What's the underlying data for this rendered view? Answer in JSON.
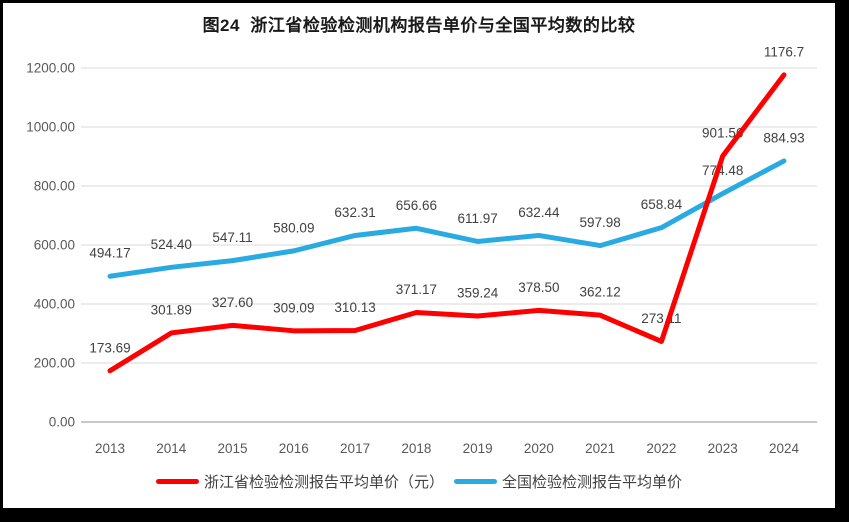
{
  "chart_data": {
    "type": "line",
    "title": "图24  浙江省检验检测机构报告单价与全国平均数的比较",
    "categories": [
      "2013",
      "2014",
      "2015",
      "2016",
      "2017",
      "2018",
      "2019",
      "2020",
      "2021",
      "2022",
      "2023",
      "2024"
    ],
    "series": [
      {
        "name": "浙江省检验检测报告平均单价（元）",
        "color": "#FF0000",
        "values": [
          173.69,
          301.89,
          327.6,
          309.09,
          310.13,
          371.17,
          359.24,
          378.5,
          362.12,
          273.11,
          901.56,
          1176.7
        ],
        "labels": [
          "173.69",
          "301.89",
          "327.60",
          "309.09",
          "310.13",
          "371.17",
          "359.24",
          "378.50",
          "362.12",
          "273.11",
          "901.56",
          "1176.7"
        ]
      },
      {
        "name": "全国检验检测报告平均单价",
        "color": "#29ABE2",
        "values": [
          494.17,
          524.4,
          547.11,
          580.09,
          632.31,
          656.66,
          611.97,
          632.44,
          597.98,
          658.84,
          774.48,
          884.93
        ],
        "labels": [
          "494.17",
          "524.40",
          "547.11",
          "580.09",
          "632.31",
          "656.66",
          "611.97",
          "632.44",
          "597.98",
          "658.84",
          "774.48",
          "884.93"
        ]
      }
    ],
    "y_axis": {
      "min": 0,
      "max": 1200,
      "step": 200,
      "tick_labels": [
        "0.00",
        "200.00",
        "400.00",
        "600.00",
        "800.00",
        "1000.00",
        "1200.00"
      ]
    },
    "x_axis": {
      "label": ""
    },
    "grid": true,
    "legend_position": "bottom",
    "colors": {
      "gridline": "#D9D9D9",
      "axis_line": "#BFBFBF",
      "tick_text": "#595959",
      "data_label_text": "#404040",
      "title_text": "#1a1a1a",
      "background": "#ffffff",
      "frame": "#000000"
    }
  }
}
